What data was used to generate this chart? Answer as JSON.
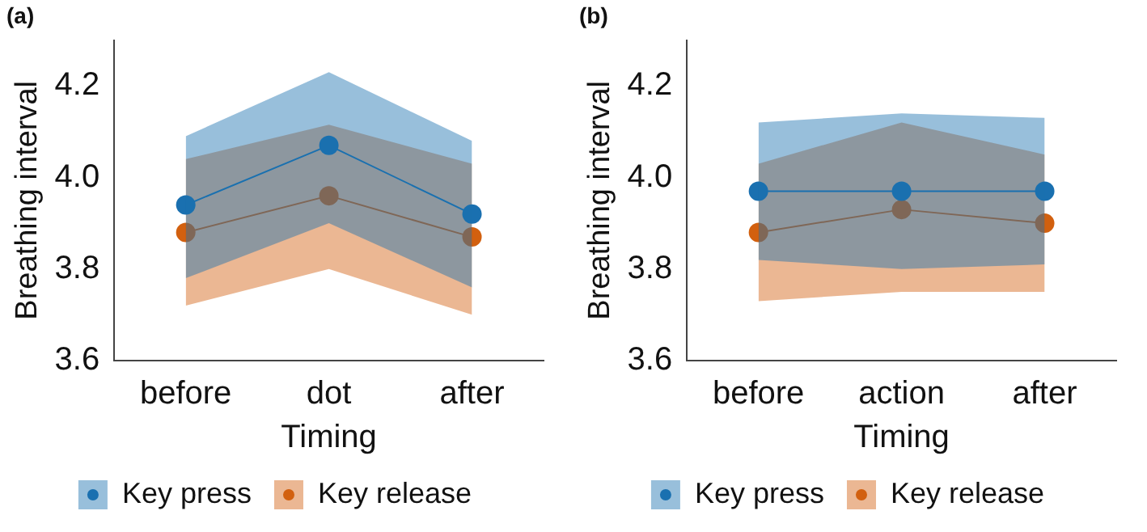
{
  "chart_data": [
    {
      "type": "line",
      "title": "(a)",
      "xlabel": "Timing",
      "ylabel": "Breathing interval",
      "categories": [
        "before",
        "dot",
        "after"
      ],
      "ylim": [
        3.6,
        4.3
      ],
      "yticks": [
        3.6,
        3.8,
        {
          "value": 4,
          "label": "4.0"
        },
        4.2
      ],
      "grid": false,
      "legend": "bottom",
      "marker": "circle",
      "line_style": "solid",
      "series": [
        {
          "name": "Key press",
          "color": "#1a70b0",
          "values": [
            3.94,
            4.07,
            3.92
          ],
          "lower": [
            3.78,
            3.9,
            3.76
          ],
          "upper": [
            4.09,
            4.23,
            4.08
          ]
        },
        {
          "name": "Key release",
          "color": "#d2600f",
          "values": [
            3.88,
            3.96,
            3.87
          ],
          "lower": [
            3.72,
            3.8,
            3.7
          ],
          "upper": [
            4.04,
            4.115,
            4.03
          ]
        }
      ]
    },
    {
      "type": "line",
      "title": "(b)",
      "xlabel": "Timing",
      "ylabel": "Breathing interval",
      "categories": [
        "before",
        "action",
        "after"
      ],
      "ylim": [
        3.6,
        4.3
      ],
      "yticks": [
        3.6,
        3.8,
        {
          "value": 4,
          "label": "4.0"
        },
        4.2
      ],
      "grid": false,
      "legend": "bottom",
      "marker": "circle",
      "line_style": "solid",
      "series": [
        {
          "name": "Key press",
          "color": "#1a70b0",
          "values": [
            3.97,
            3.97,
            3.97
          ],
          "lower": [
            3.82,
            3.8,
            3.81
          ],
          "upper": [
            4.12,
            4.14,
            4.13
          ]
        },
        {
          "name": "Key release",
          "color": "#d2600f",
          "values": [
            3.88,
            3.93,
            3.9
          ],
          "lower": [
            3.73,
            3.75,
            3.75
          ],
          "upper": [
            4.03,
            4.12,
            4.05
          ]
        }
      ]
    }
  ]
}
